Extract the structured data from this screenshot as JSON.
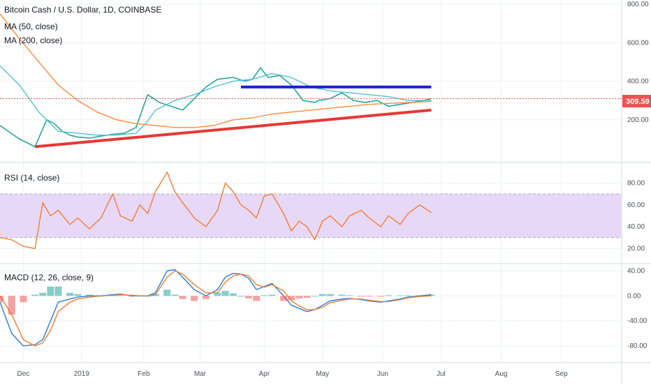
{
  "chart_data": [
    {
      "type": "line",
      "pane": "price",
      "title": "Bitcoin Cash / U.S. Dollar, 1D, COINBASE",
      "legend": [
        "MA (50, close)",
        "MA (200, close)"
      ],
      "ylim": [
        0,
        800
      ],
      "yticks": [
        "200.00",
        "400.00",
        "600.00",
        "800.00"
      ],
      "last_price": "309.59",
      "series": [
        {
          "name": "BCHUSD",
          "color": "#26a69a",
          "x": [
            0,
            10,
            18,
            24,
            28,
            32,
            36,
            40,
            46,
            52,
            58,
            64,
            70,
            76,
            82,
            88,
            94,
            100,
            106,
            112,
            120,
            126,
            130,
            134,
            138,
            144,
            150,
            156,
            162,
            164,
            170,
            176,
            182,
            188,
            194,
            200,
            206,
            212,
            218,
            222
          ],
          "y": [
            170,
            100,
            60,
            200,
            180,
            140,
            120,
            110,
            105,
            115,
            125,
            130,
            160,
            330,
            290,
            270,
            250,
            310,
            370,
            410,
            420,
            400,
            410,
            470,
            420,
            430,
            380,
            300,
            290,
            300,
            310,
            340,
            300,
            290,
            300,
            270,
            280,
            290,
            300,
            310
          ]
        },
        {
          "name": "MA (50, close)",
          "color": "#4fc1d4",
          "x": [
            0,
            10,
            20,
            30,
            40,
            50,
            60,
            70,
            75,
            80,
            90,
            100,
            110,
            120,
            130,
            140,
            150,
            160,
            170,
            180,
            190,
            200,
            210,
            222
          ],
          "y": [
            480,
            380,
            240,
            140,
            130,
            120,
            120,
            130,
            180,
            250,
            300,
            330,
            370,
            400,
            410,
            440,
            420,
            370,
            350,
            340,
            330,
            320,
            300,
            300
          ]
        },
        {
          "name": "MA (200, close)",
          "color": "#ff8a3d",
          "x": [
            0,
            10,
            20,
            30,
            40,
            50,
            60,
            70,
            80,
            90,
            100,
            110,
            120,
            130,
            140,
            150,
            160,
            170,
            180,
            190,
            200,
            210,
            222
          ],
          "y": [
            750,
            620,
            500,
            380,
            300,
            240,
            200,
            180,
            170,
            160,
            160,
            170,
            200,
            210,
            230,
            240,
            250,
            260,
            270,
            280,
            285,
            290,
            295
          ]
        },
        {
          "name": "Support trendline",
          "color": "#e53935",
          "x": [
            18,
            222
          ],
          "y": [
            60,
            250
          ]
        },
        {
          "name": "Resistance line",
          "color": "#1a1ed1",
          "x": [
            124,
            222
          ],
          "y": [
            370,
            370
          ]
        }
      ]
    },
    {
      "type": "line",
      "pane": "rsi",
      "title": "RSI (14, close)",
      "ylim": [
        10,
        95
      ],
      "yticks": [
        "20.00",
        "40.00",
        "60.00",
        "80.00"
      ],
      "band": [
        30,
        70
      ],
      "series": [
        {
          "name": "RSI",
          "color": "#f57c30",
          "x": [
            0,
            6,
            12,
            18,
            22,
            26,
            30,
            36,
            40,
            46,
            52,
            58,
            62,
            68,
            72,
            76,
            80,
            86,
            90,
            94,
            100,
            106,
            112,
            116,
            120,
            124,
            128,
            132,
            136,
            140,
            146,
            150,
            154,
            158,
            162,
            166,
            170,
            176,
            180,
            186,
            190,
            196,
            200,
            206,
            210,
            216,
            222
          ],
          "y": [
            30,
            28,
            22,
            20,
            62,
            50,
            55,
            42,
            48,
            38,
            48,
            70,
            50,
            45,
            60,
            52,
            72,
            90,
            72,
            62,
            48,
            40,
            55,
            80,
            72,
            60,
            55,
            48,
            68,
            70,
            52,
            36,
            45,
            40,
            28,
            45,
            50,
            40,
            50,
            55,
            48,
            40,
            50,
            42,
            52,
            60,
            53
          ]
        }
      ]
    },
    {
      "type": "line",
      "pane": "macd",
      "title": "MACD (12, 26, close, 9)",
      "ylim": [
        -100,
        45
      ],
      "yticks": [
        "-80.00",
        "-40.00",
        "0.00",
        "40.00"
      ],
      "series": [
        {
          "name": "MACD",
          "color": "#2b7bd8",
          "x": [
            0,
            6,
            12,
            18,
            22,
            26,
            30,
            36,
            40,
            46,
            52,
            58,
            62,
            68,
            72,
            76,
            80,
            86,
            90,
            94,
            100,
            106,
            112,
            116,
            120,
            124,
            128,
            132,
            136,
            140,
            146,
            150,
            154,
            158,
            162,
            166,
            170,
            176,
            180,
            186,
            190,
            196,
            200,
            206,
            210,
            216,
            222
          ],
          "y": [
            -10,
            -60,
            -80,
            -78,
            -70,
            -40,
            -10,
            -5,
            -2,
            0,
            0,
            2,
            3,
            0,
            0,
            0,
            5,
            40,
            42,
            30,
            10,
            0,
            10,
            30,
            36,
            35,
            28,
            10,
            15,
            20,
            0,
            -15,
            -20,
            -25,
            -22,
            -15,
            -8,
            -5,
            -4,
            -6,
            -8,
            -10,
            -8,
            -5,
            -2,
            0,
            2
          ]
        },
        {
          "name": "Signal",
          "color": "#f57c30",
          "x": [
            0,
            6,
            12,
            18,
            22,
            26,
            30,
            36,
            40,
            46,
            52,
            58,
            62,
            68,
            72,
            76,
            80,
            86,
            90,
            94,
            100,
            106,
            112,
            116,
            120,
            124,
            128,
            132,
            136,
            140,
            146,
            150,
            154,
            158,
            162,
            166,
            170,
            176,
            180,
            186,
            190,
            196,
            200,
            206,
            210,
            216,
            222
          ],
          "y": [
            0,
            -30,
            -70,
            -80,
            -75,
            -55,
            -25,
            -10,
            -5,
            -2,
            0,
            1,
            2,
            1,
            0,
            0,
            2,
            30,
            40,
            35,
            18,
            5,
            5,
            22,
            32,
            35,
            32,
            18,
            14,
            18,
            8,
            -8,
            -16,
            -22,
            -22,
            -18,
            -11,
            -7,
            -5,
            -5,
            -7,
            -9,
            -9,
            -6,
            -3,
            -1,
            0
          ]
        },
        {
          "name": "Histogram",
          "color": "#26a69a",
          "x": [
            0,
            6,
            12,
            18,
            22,
            26,
            30,
            36,
            40,
            46,
            52,
            58,
            62,
            68,
            72,
            76,
            80,
            86,
            90,
            94,
            100,
            106,
            112,
            116,
            120,
            124,
            128,
            132,
            136,
            140,
            146,
            150,
            154,
            158,
            162,
            166,
            170,
            176,
            180,
            186,
            190,
            196,
            200,
            206,
            210,
            216,
            222
          ],
          "y": [
            -10,
            -30,
            -10,
            2,
            5,
            15,
            15,
            5,
            3,
            2,
            0,
            1,
            1,
            -1,
            0,
            0,
            3,
            10,
            2,
            -5,
            -8,
            -5,
            5,
            8,
            4,
            0,
            -4,
            -8,
            1,
            2,
            -8,
            -7,
            -4,
            -3,
            0,
            3,
            3,
            2,
            1,
            -1,
            -1,
            -1,
            1,
            1,
            1,
            1,
            2
          ]
        }
      ]
    }
  ],
  "x_axis_labels": [
    {
      "label": "Dec",
      "x": 12
    },
    {
      "label": "2019",
      "x": 42
    },
    {
      "label": "Feb",
      "x": 74
    },
    {
      "label": "Mar",
      "x": 103
    },
    {
      "label": "Apr",
      "x": 136
    },
    {
      "label": "May",
      "x": 166
    },
    {
      "label": "Jun",
      "x": 197
    },
    {
      "label": "Jul",
      "x": 227
    },
    {
      "label": "Aug",
      "x": 258
    },
    {
      "label": "Sep",
      "x": 289
    }
  ],
  "x_range": [
    0,
    320
  ],
  "colors": {
    "background": "#ffffff",
    "grid": "#eef0f3",
    "axis": "#b2b5be",
    "rsi_band": "#e8d8f7",
    "price_tag": "#ef5350",
    "up": "#26a69a",
    "down": "#ef5350"
  }
}
